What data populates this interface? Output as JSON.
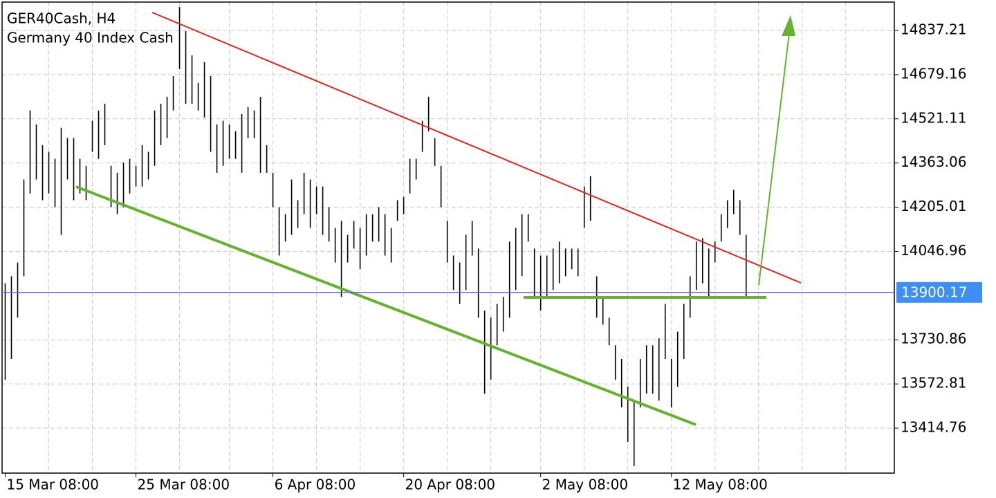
{
  "chart_data": {
    "type": "range_bar",
    "title": "GER40Cash, H4",
    "subtitle": "Germany 40 Index Cash",
    "high": [
      13933,
      13958,
      14007,
      14304,
      14551,
      14501,
      14427,
      14403,
      14378,
      14489,
      14452,
      14452,
      14378,
      14353,
      14514,
      14551,
      14575,
      14353,
      14328,
      14365,
      14378,
      14353,
      14427,
      14403,
      14551,
      14575,
      14600,
      14674,
      14921,
      14835,
      14748,
      14650,
      14724,
      14674,
      14501,
      14514,
      14501,
      14477,
      14538,
      14563,
      14551,
      14600,
      14427,
      14328,
      14205,
      14180,
      14304,
      14230,
      14328,
      14304,
      14279,
      14279,
      14205,
      14131,
      14156,
      14106,
      14156,
      14131,
      14180,
      14180,
      14205,
      14180,
      14131,
      14230,
      14242,
      14378,
      14378,
      14514,
      14600,
      14452,
      14353,
      14156,
      14032,
      14007,
      14106,
      14156,
      14057,
      13835,
      13810,
      13859,
      13884,
      14082,
      14131,
      14180,
      14180,
      14057,
      14032,
      14032,
      14057,
      14082,
      14057,
      14057,
      14057,
      14279,
      14316,
      13958,
      13884,
      13810,
      13711,
      13662,
      13563,
      13513,
      13662,
      13711,
      13711,
      13736,
      13859,
      13662,
      13760,
      13859,
      13958,
      14082,
      14094,
      14057,
      14082,
      14180,
      14230,
      14267,
      14230,
      14106
    ],
    "low": [
      13588,
      13662,
      13810,
      13958,
      14254,
      14304,
      14230,
      14254,
      14205,
      14106,
      14304,
      14230,
      14254,
      14230,
      14403,
      14378,
      14427,
      14205,
      14180,
      14205,
      14254,
      14279,
      14279,
      14304,
      14353,
      14427,
      14452,
      14551,
      14699,
      14575,
      14575,
      14551,
      14526,
      14403,
      14328,
      14353,
      14378,
      14378,
      14328,
      14452,
      14452,
      14328,
      14328,
      14205,
      14032,
      14082,
      14106,
      14131,
      14180,
      14131,
      14180,
      14106,
      14082,
      14007,
      13884,
      14007,
      14057,
      13983,
      14032,
      14082,
      14082,
      14032,
      14007,
      14156,
      14180,
      14254,
      14304,
      14403,
      14477,
      14353,
      14205,
      14007,
      13909,
      13859,
      13909,
      14032,
      13810,
      13538,
      13588,
      13711,
      13760,
      13810,
      13909,
      13958,
      14082,
      13884,
      13835,
      13884,
      13909,
      13933,
      13958,
      13983,
      13958,
      14131,
      14156,
      13810,
      13785,
      13711,
      13588,
      13489,
      13365,
      13279,
      13489,
      13538,
      13538,
      13513,
      13662,
      13489,
      13563,
      13662,
      13810,
      13909,
      13933,
      13884,
      14007,
      14082,
      14131,
      14180,
      14106,
      13879
    ],
    "color": "#000000",
    "xlim": [
      -0.5,
      142.8
    ],
    "xticks": [
      {
        "value": 0,
        "label": "15 Mar 08:00"
      },
      {
        "value": 21,
        "label": "25 Mar 08:00"
      },
      {
        "value": 43,
        "label": "6 Apr 08:00"
      },
      {
        "value": 64,
        "label": "20 Apr 08:00"
      },
      {
        "value": 86,
        "label": "2 May 08:00"
      },
      {
        "value": 107,
        "label": "12 May 08:00"
      }
    ],
    "xgrid": [
      7,
      14,
      21,
      28,
      36,
      43,
      50,
      57,
      64,
      71,
      78,
      86,
      93,
      100,
      107,
      114,
      121,
      128,
      135
    ],
    "ylim": [
      13253.96,
      14938.64
    ],
    "yticks": [
      14837.21,
      14679.16,
      14521.11,
      14363.06,
      14205.01,
      14046.96,
      13730.86,
      13572.81,
      13414.76
    ],
    "grid": true,
    "current_price": 13900.17,
    "current_price_color": "#3d8ff3"
  }
}
